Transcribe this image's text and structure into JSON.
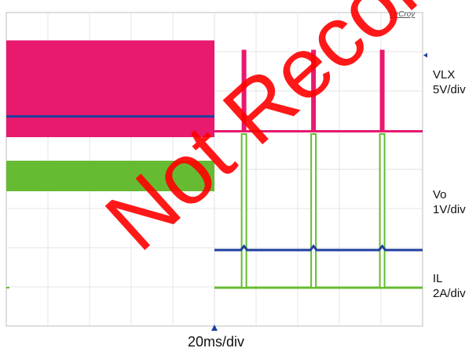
{
  "chart_data": {
    "type": "line",
    "title": "",
    "xlabel": "20ms/div",
    "brand": "LeCroy",
    "watermark": "Not Recommended",
    "x_divisions": 10,
    "y_divisions": 8,
    "series": [
      {
        "name": "VLX",
        "scale_label_line1": "VLX",
        "scale_label_line2": "5V/div",
        "color": "#e8196f",
        "description": "switching node, continuous switching then burst pulses",
        "baseline_div": 4.97,
        "burst_high_div": 7.29,
        "burst_low_div": 4.82,
        "pulse_x_div": [
          5.71,
          7.38,
          9.03
        ]
      },
      {
        "name": "Vo",
        "scale_label_line1": "Vo",
        "scale_label_line2": "1V/div",
        "color": "#1f3f9e",
        "level_before_div": 5.35,
        "level_after_div": 1.94,
        "bump_x_div": [
          5.71,
          7.38,
          9.03
        ]
      },
      {
        "name": "IL",
        "scale_label_line1": "IL",
        "scale_label_line2": "2A/div",
        "color": "#66bb33",
        "band_top_div": 4.22,
        "band_bottom_div": 3.44,
        "baseline_div": 0.98,
        "pulse_top_div": 4.9,
        "pulse_x_div": [
          5.71,
          7.38,
          9.03
        ]
      }
    ],
    "transition_x_div": 5.0,
    "grid": true
  }
}
